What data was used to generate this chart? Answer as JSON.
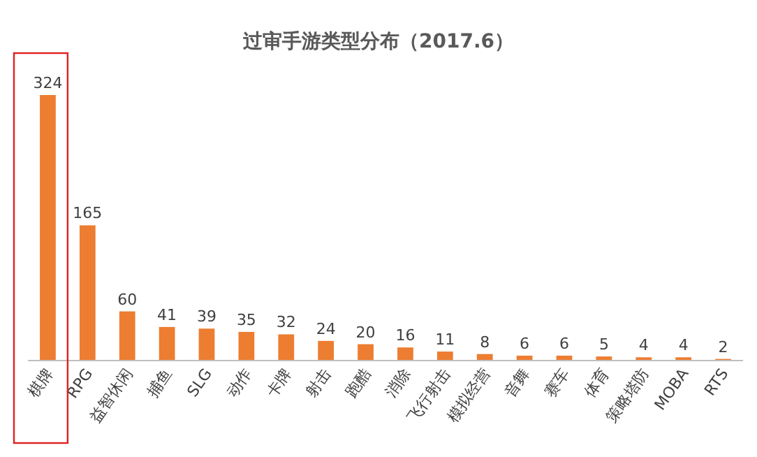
{
  "chart_data": {
    "type": "bar",
    "title": "过审手游类型分布（2017.6）",
    "categories": [
      "棋牌",
      "RPG",
      "益智休闲",
      "捕鱼",
      "SLG",
      "动作",
      "卡牌",
      "射击",
      "跑酷",
      "消除",
      "飞行射击",
      "模拟经营",
      "音舞",
      "赛车",
      "体育",
      "策略塔防",
      "MOBA",
      "RTS"
    ],
    "values": [
      324,
      165,
      60,
      41,
      39,
      35,
      32,
      24,
      20,
      16,
      11,
      8,
      6,
      6,
      5,
      4,
      4,
      2
    ],
    "color": "#ed7d31",
    "data_labels": true
  }
}
